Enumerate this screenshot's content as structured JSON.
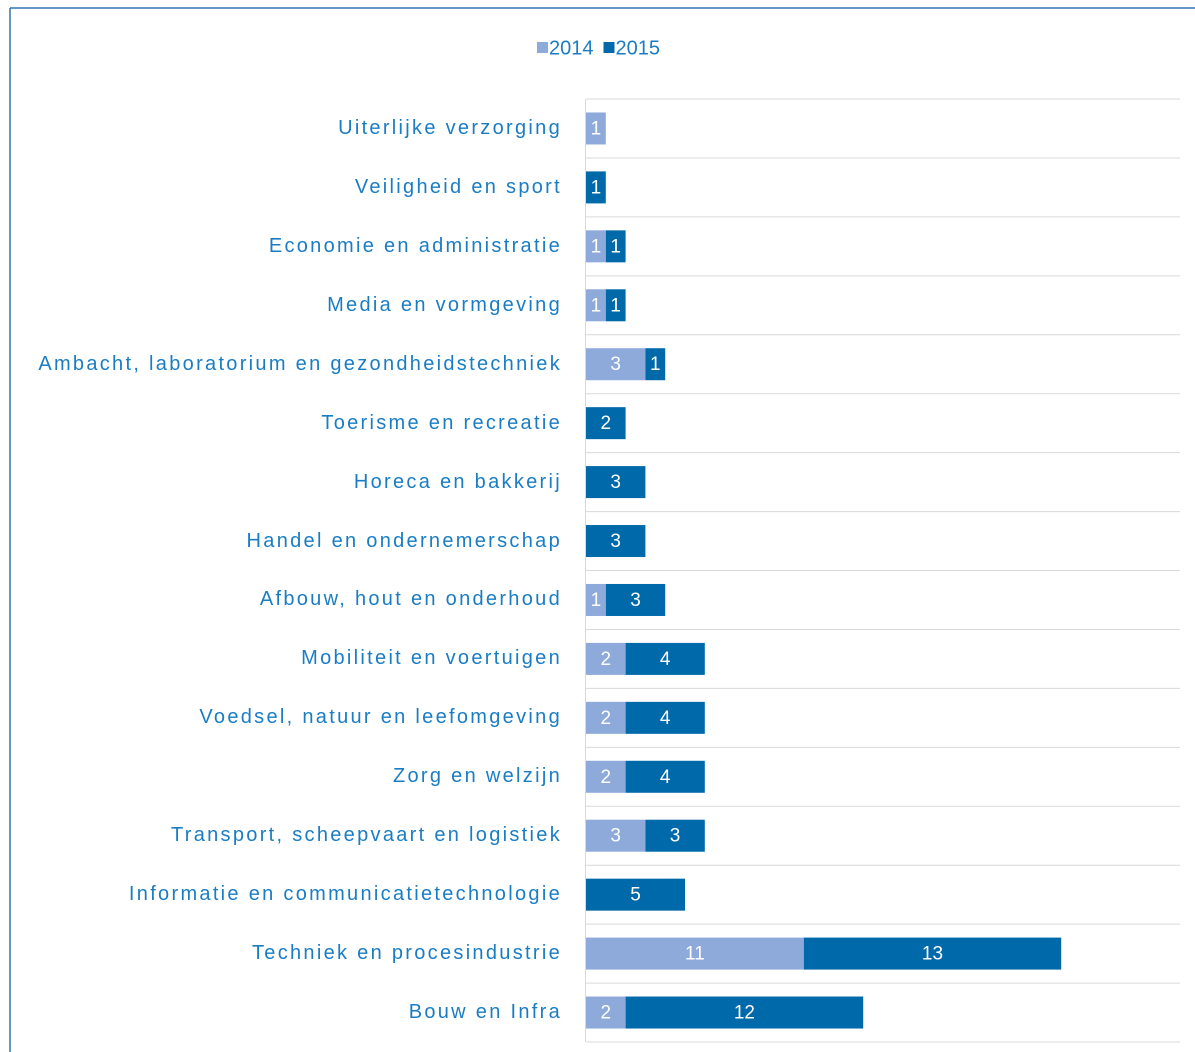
{
  "chart_data": {
    "type": "stacked-bar-horizontal",
    "categories": [
      "Uiterlijke verzorging",
      "Veiligheid en sport",
      "Economie en administratie",
      "Media en vormgeving",
      "Ambacht, laboratorium en gezondheidstechniek",
      "Toerisme en recreatie",
      "Horeca en bakkerij",
      "Handel en ondernemerschap",
      "Afbouw, hout en onderhoud",
      "Mobiliteit en voertuigen",
      "Voedsel, natuur en leefomgeving",
      "Zorg en welzijn",
      "Transport, scheepvaart en logistiek",
      "Informatie en communicatietechnologie",
      "Techniek en procesindustrie",
      "Bouw en Infra"
    ],
    "series": [
      {
        "name": "2014",
        "color": "#8eaadb",
        "values": [
          1,
          null,
          1,
          1,
          3,
          null,
          null,
          null,
          1,
          2,
          2,
          2,
          3,
          null,
          11,
          2
        ]
      },
      {
        "name": "2015",
        "color": "#0069aa",
        "values": [
          null,
          1,
          1,
          1,
          1,
          2,
          3,
          3,
          3,
          4,
          4,
          4,
          3,
          5,
          13,
          12
        ]
      }
    ],
    "xlim": [
      0,
      30
    ]
  }
}
